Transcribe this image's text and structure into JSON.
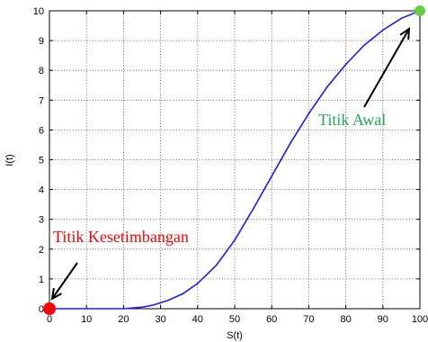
{
  "chart_data": {
    "type": "line",
    "xlabel": "S(t)",
    "ylabel": "I(t)",
    "xlim": [
      0,
      100
    ],
    "ylim": [
      0,
      10
    ],
    "grid": true,
    "x_ticks": [
      "0",
      "10",
      "20",
      "30",
      "40",
      "50",
      "60",
      "70",
      "80",
      "90",
      "100"
    ],
    "y_ticks": [
      "0",
      "1",
      "2",
      "3",
      "4",
      "5",
      "6",
      "7",
      "8",
      "9",
      "10"
    ],
    "series": [
      {
        "color": "#1a1aff",
        "x": [
          0,
          10,
          20,
          25,
          28,
          32,
          36,
          40,
          45,
          50,
          55,
          60,
          65,
          70,
          75,
          80,
          85,
          90,
          95,
          100
        ],
        "y": [
          0,
          0,
          0,
          0.05,
          0.12,
          0.28,
          0.5,
          0.85,
          1.45,
          2.3,
          3.35,
          4.45,
          5.55,
          6.55,
          7.45,
          8.2,
          8.85,
          9.35,
          9.75,
          10
        ]
      }
    ],
    "markers": [
      {
        "x": 0,
        "y": 0,
        "color": "#ff0000"
      },
      {
        "x": 100,
        "y": 10,
        "color": "#66cc44"
      }
    ],
    "annotations": [
      {
        "text": "Titik Kesetimbangan",
        "color": "#ff0000",
        "arrow_to": [
          0,
          0
        ]
      },
      {
        "text": "Titik Awal",
        "color": "#22aa55",
        "arrow_to": [
          100,
          10
        ]
      }
    ]
  }
}
